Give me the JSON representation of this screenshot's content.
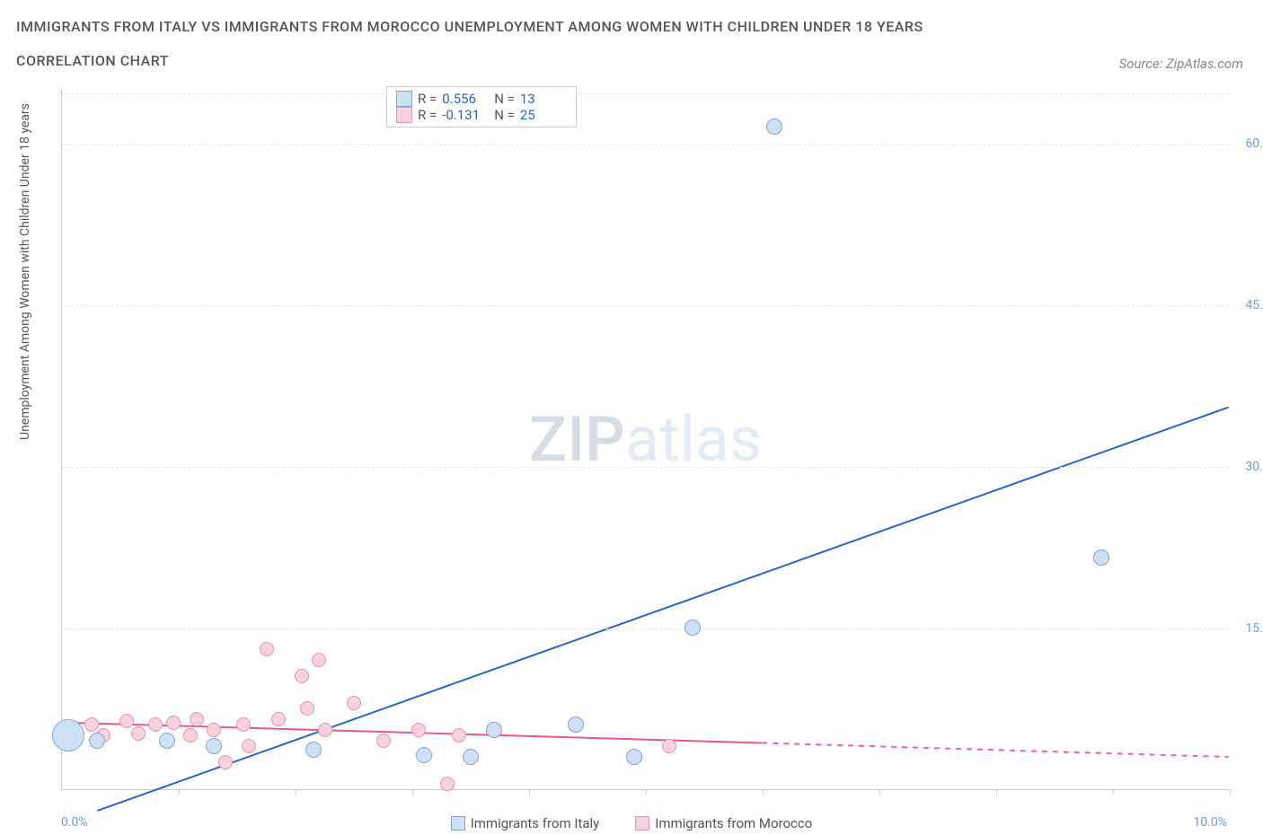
{
  "title_line1": "IMMIGRANTS FROM ITALY VS IMMIGRANTS FROM MOROCCO UNEMPLOYMENT AMONG WOMEN WITH CHILDREN UNDER 18 YEARS",
  "title_line2": "CORRELATION CHART",
  "source": "Source: ZipAtlas.com",
  "watermark_bold": "ZIP",
  "watermark_light": "atlas",
  "chart": {
    "type": "scatter",
    "ylabel": "Unemployment Among Women with Children Under 18 years",
    "xlim": [
      0,
      10
    ],
    "ylim": [
      0,
      65
    ],
    "ytick_values": [
      15.0,
      30.0,
      45.0,
      60.0
    ],
    "ytick_labels": [
      "15.0%",
      "30.0%",
      "45.0%",
      "60.0%"
    ],
    "xtick_values": [
      1,
      2,
      3,
      4,
      5,
      6,
      7,
      8,
      9,
      10
    ],
    "x_min_label": "0.0%",
    "x_max_label": "10.0%",
    "background_color": "#ffffff",
    "grid_color": "#e5e5e5",
    "series": {
      "italy": {
        "label": "Immigrants from Italy",
        "marker_fill": "#cfe0f4",
        "marker_stroke": "#7aa6de",
        "line_color": "#2566cc",
        "marker_radius": 9,
        "R": "0.556",
        "N": "13",
        "reg_line": {
          "x1": 0.3,
          "y1": -2.0,
          "x2": 10.0,
          "y2": 35.5
        },
        "points": [
          {
            "x": 0.05,
            "y": 5.0,
            "r": 18
          },
          {
            "x": 0.3,
            "y": 4.5
          },
          {
            "x": 0.9,
            "y": 4.5
          },
          {
            "x": 1.3,
            "y": 4.0
          },
          {
            "x": 2.15,
            "y": 3.7
          },
          {
            "x": 3.1,
            "y": 3.2
          },
          {
            "x": 3.7,
            "y": 5.5
          },
          {
            "x": 3.5,
            "y": 3.0
          },
          {
            "x": 4.4,
            "y": 6.0
          },
          {
            "x": 4.9,
            "y": 3.0
          },
          {
            "x": 5.4,
            "y": 15.0
          },
          {
            "x": 6.1,
            "y": 61.5
          },
          {
            "x": 8.9,
            "y": 21.5
          }
        ]
      },
      "morocco": {
        "label": "Immigrants from Morocco",
        "marker_fill": "#f6d2dc",
        "marker_stroke": "#e392a9",
        "line_color": "#e45a84",
        "marker_radius": 8,
        "R": "-0.131",
        "N": "25",
        "reg_line_solid": {
          "x1": 0.0,
          "y1": 6.2,
          "x2": 6.0,
          "y2": 4.3
        },
        "reg_line_dashed": {
          "x1": 6.0,
          "y1": 4.3,
          "x2": 10.0,
          "y2": 3.0
        },
        "points": [
          {
            "x": 0.1,
            "y": 5.5
          },
          {
            "x": 0.25,
            "y": 6.0
          },
          {
            "x": 0.35,
            "y": 5.0
          },
          {
            "x": 0.55,
            "y": 6.3
          },
          {
            "x": 0.65,
            "y": 5.2
          },
          {
            "x": 0.8,
            "y": 6.0
          },
          {
            "x": 0.95,
            "y": 6.2
          },
          {
            "x": 1.1,
            "y": 5.0
          },
          {
            "x": 1.15,
            "y": 6.5
          },
          {
            "x": 1.3,
            "y": 5.5
          },
          {
            "x": 1.4,
            "y": 2.5
          },
          {
            "x": 1.55,
            "y": 6.0
          },
          {
            "x": 1.6,
            "y": 4.0
          },
          {
            "x": 1.75,
            "y": 13.0
          },
          {
            "x": 1.85,
            "y": 6.5
          },
          {
            "x": 2.05,
            "y": 10.5
          },
          {
            "x": 2.1,
            "y": 7.5
          },
          {
            "x": 2.2,
            "y": 12.0
          },
          {
            "x": 2.25,
            "y": 5.5
          },
          {
            "x": 2.5,
            "y": 8.0
          },
          {
            "x": 2.75,
            "y": 4.5
          },
          {
            "x": 3.05,
            "y": 5.5
          },
          {
            "x": 3.3,
            "y": 0.5
          },
          {
            "x": 3.4,
            "y": 5.0
          },
          {
            "x": 5.2,
            "y": 4.0
          }
        ]
      }
    }
  }
}
